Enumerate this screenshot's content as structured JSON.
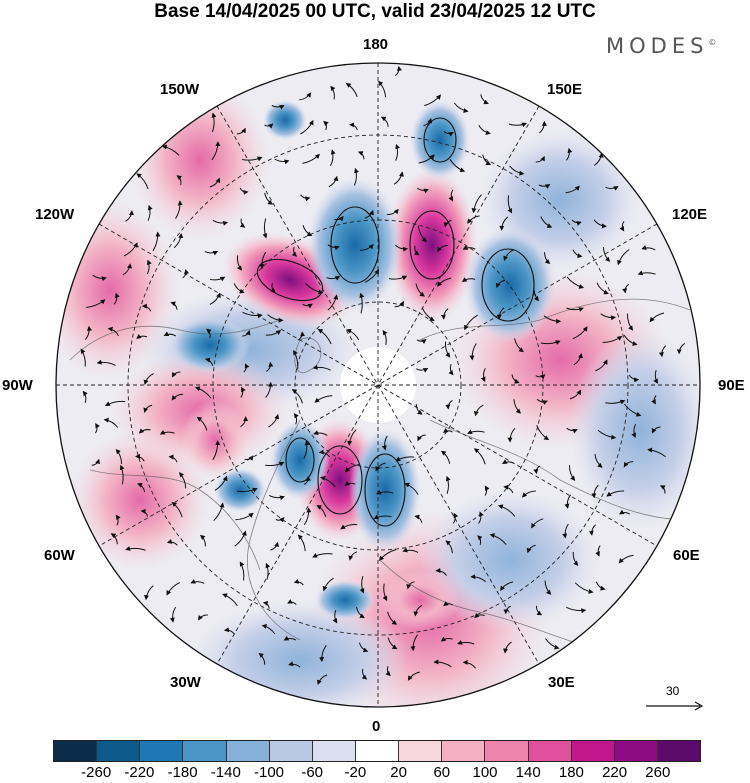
{
  "title": "Base 14/04/2025 00 UTC, valid 23/04/2025 12 UTC",
  "brand": {
    "name": "MODES",
    "mark": "©"
  },
  "longitude_labels": {
    "n180": "180",
    "w150": "150W",
    "e150": "150E",
    "w120": "120W",
    "e120": "120E",
    "w90": "90W",
    "e90": "90E",
    "w60": "60W",
    "e60": "60E",
    "w30": "30W",
    "e30": "30E",
    "z0": "0"
  },
  "reference_vector": {
    "label": "30"
  },
  "colorbar": {
    "ticks": [
      "-260",
      "-220",
      "-180",
      "-140",
      "-100",
      "-60",
      "-20",
      "20",
      "60",
      "100",
      "140",
      "180",
      "220",
      "260"
    ],
    "colors": [
      "#0b2c4a",
      "#0c5a8c",
      "#1f78b4",
      "#4b96c6",
      "#86b2d9",
      "#b9c8e4",
      "#dcdff0",
      "#ffffff",
      "#f7d6dc",
      "#f4b0c2",
      "#ee85ad",
      "#e0509d",
      "#c2168c",
      "#8e0a82",
      "#5b0b6a"
    ]
  }
}
